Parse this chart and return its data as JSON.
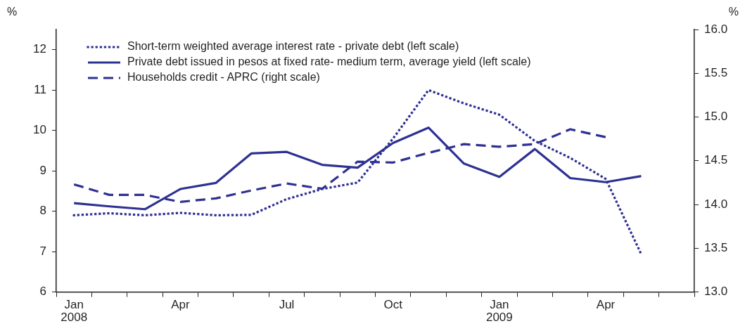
{
  "chart_data": {
    "type": "line",
    "ylabel": "%",
    "y2label": "%",
    "categories": [
      "Jan 2008",
      null,
      null,
      "Apr",
      null,
      null,
      "Jul",
      null,
      null,
      "Oct",
      null,
      null,
      "Jan 2009",
      null,
      null,
      "Apr",
      null,
      null
    ],
    "series": [
      {
        "name": "Short-term weighted average interest rate - private debt (left scale)",
        "color": "#2e3192",
        "line_style": "dotted",
        "values": [
          7.9,
          7.95,
          7.9,
          7.96,
          7.9,
          7.91,
          8.3,
          8.55,
          8.71,
          9.8,
          11.0,
          10.67,
          10.39,
          9.74,
          9.32,
          8.8,
          6.94,
          null
        ]
      },
      {
        "name": "Private debt issued in pesos at fixed rate- medium term, average yield (left scale)",
        "color": "#2e3192",
        "line_style": "solid",
        "values": [
          8.2,
          8.12,
          8.05,
          8.55,
          8.7,
          9.43,
          9.47,
          9.15,
          9.08,
          9.69,
          10.07,
          9.18,
          8.85,
          9.54,
          8.82,
          8.72,
          8.87,
          null
        ]
      },
      {
        "name": "Households credit - APRC (right scale)",
        "color": "#2e3192",
        "line_style": "dashed",
        "axis": "y2",
        "values": [
          14.23,
          14.11,
          14.11,
          14.03,
          14.07,
          14.16,
          14.24,
          14.18,
          14.49,
          14.48,
          14.59,
          14.69,
          14.66,
          14.69,
          14.86,
          14.77,
          null,
          null
        ]
      }
    ],
    "ylim": [
      6,
      12.5
    ],
    "yticks": [
      6,
      7,
      8,
      9,
      10,
      11,
      12
    ],
    "y2lim": [
      13,
      16
    ],
    "y2ticks": [
      {
        "value": 13,
        "label": "13.0"
      },
      {
        "value": 13.5,
        "label": "13.5"
      },
      {
        "value": 14,
        "label": "14.0"
      },
      {
        "value": 14.5,
        "label": "14.5"
      },
      {
        "value": 15,
        "label": "15.0"
      },
      {
        "value": 15.5,
        "label": "15.5"
      },
      {
        "value": 16,
        "label": "16.0"
      }
    ],
    "legend": "top left",
    "marker": "none",
    "grid": false
  }
}
